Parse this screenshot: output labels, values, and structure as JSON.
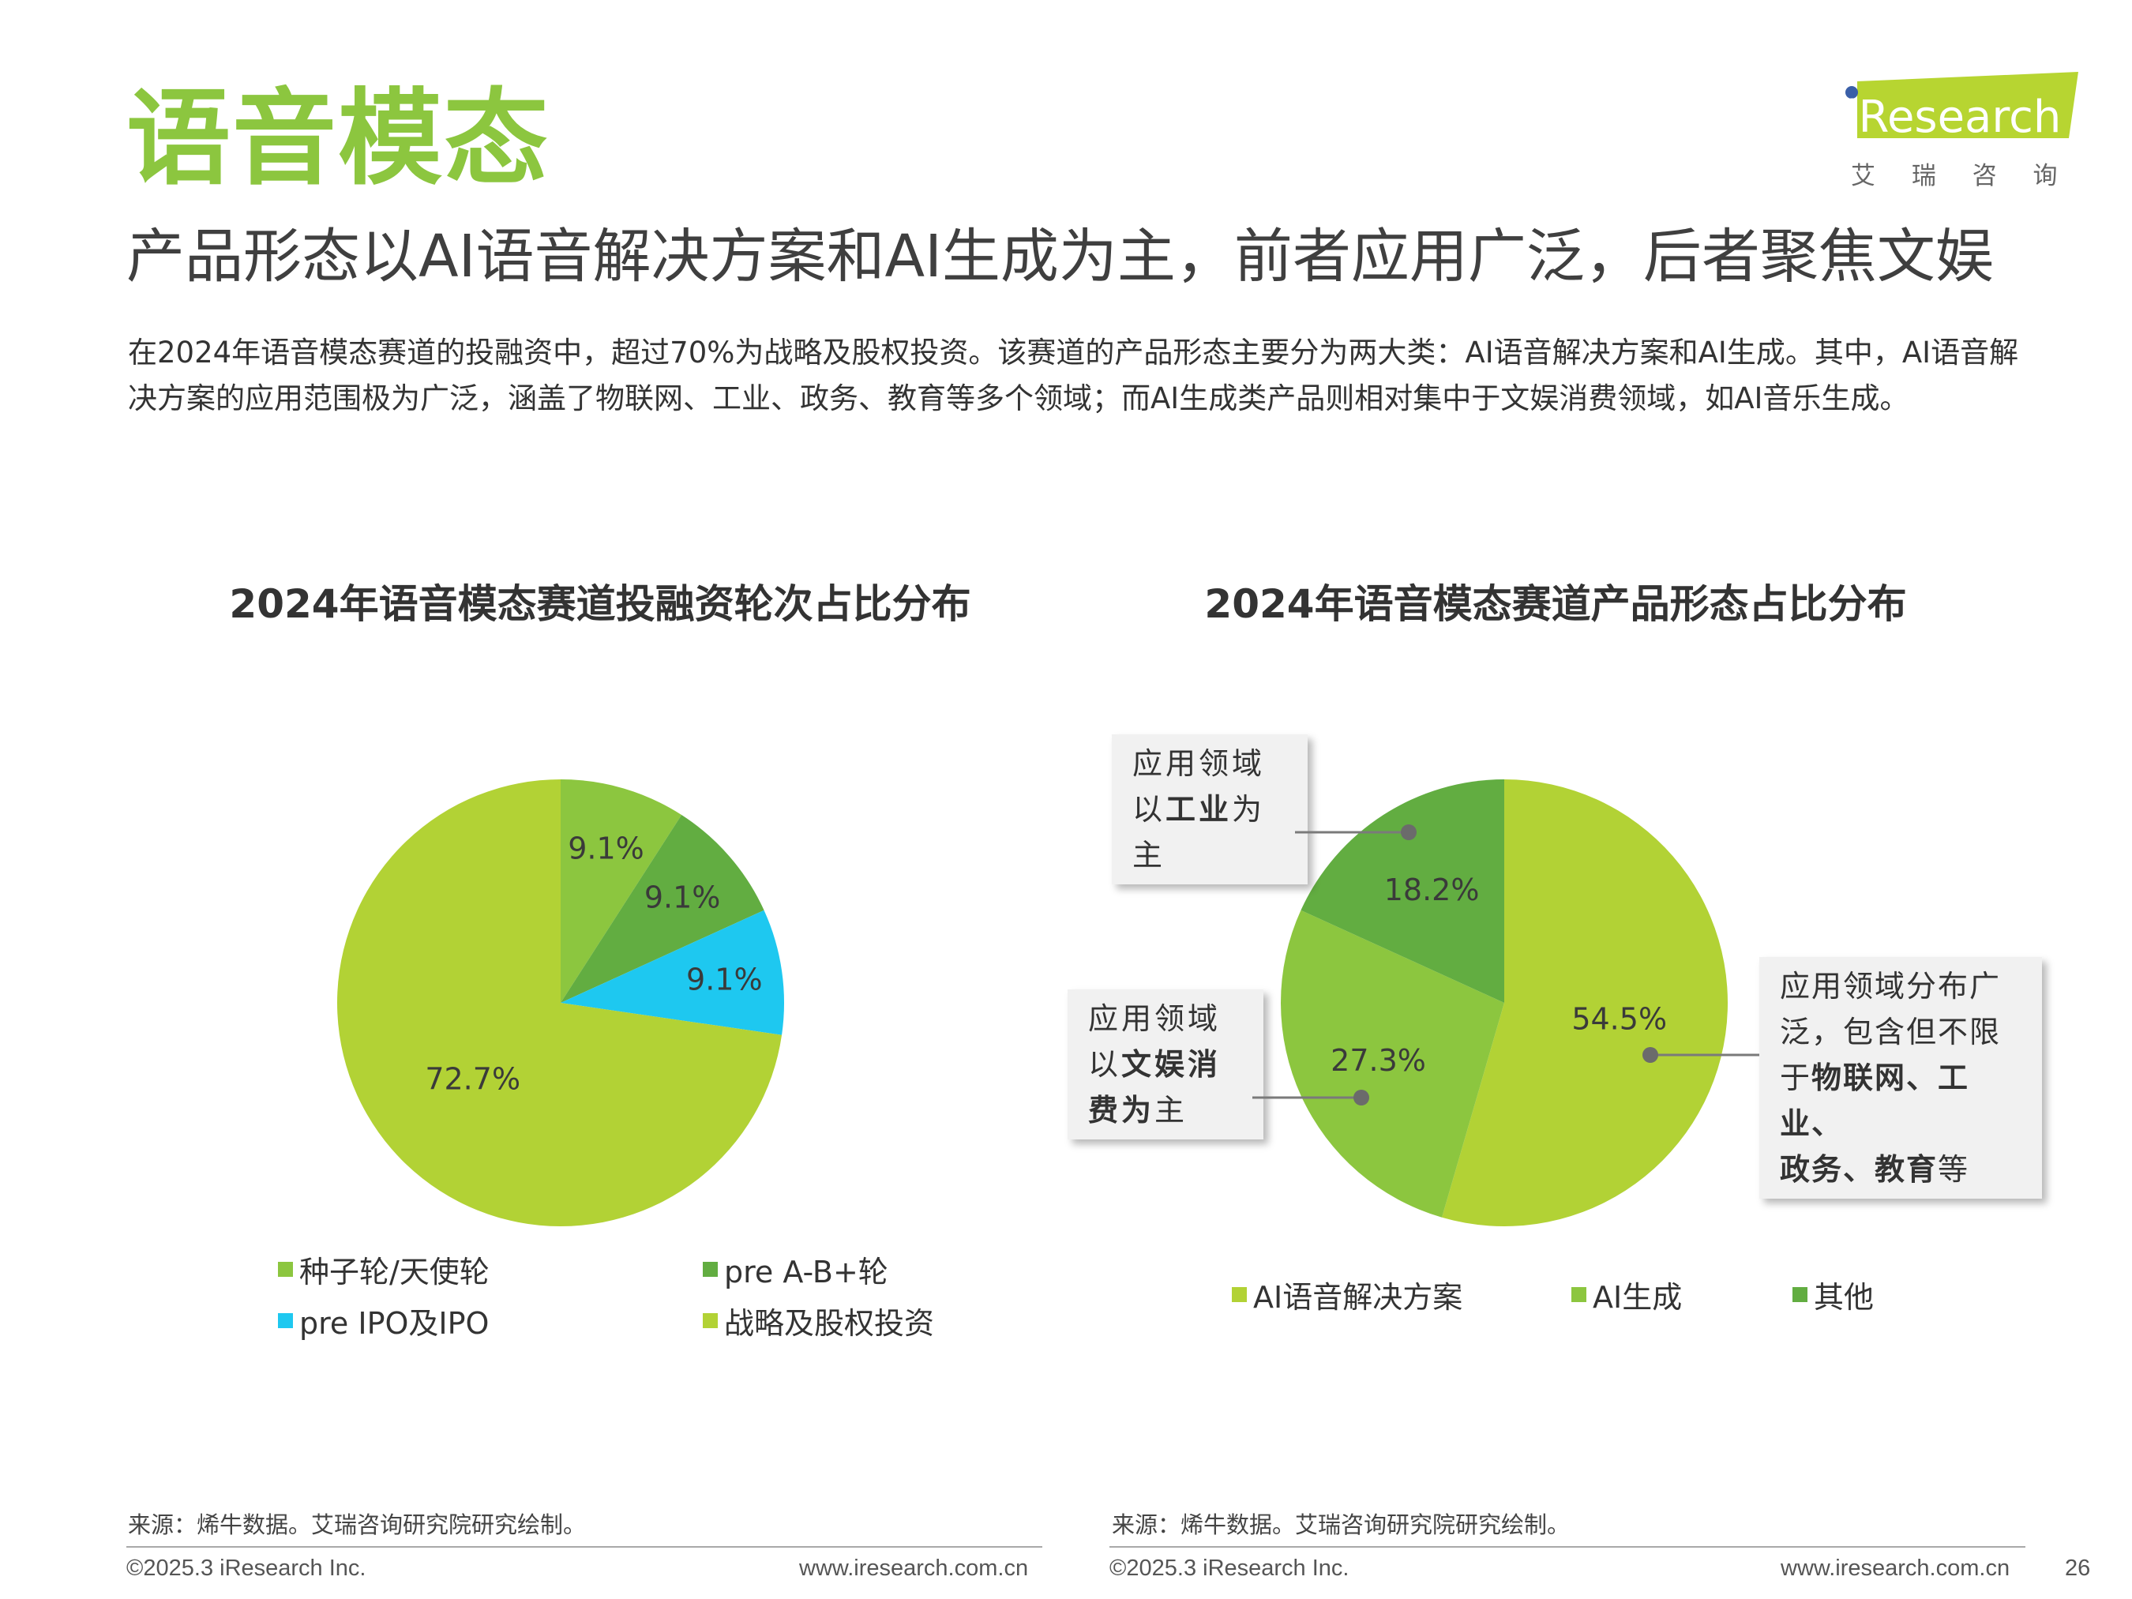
{
  "header": {
    "title": "语音模态",
    "subtitle": "产品形态以AI语音解决方案和AI生成为主，前者应用广泛，后者聚焦文娱",
    "intro": "在2024年语音模态赛道的投融资中，超过70%为战略及股权投资。该赛道的产品形态主要分为两大类：AI语音解决方案和AI生成。其中，AI语音解决方案的应用范围极为广泛，涵盖了物联网、工业、政务、教育等多个领域；而AI生成类产品则相对集中于文娱消费领域，如AI音乐生成。"
  },
  "logo": {
    "brand": "iResearch",
    "cn": "艾 瑞 咨 询",
    "accent": "#8cc63f"
  },
  "chart_data": [
    {
      "type": "pie",
      "title": "2024年语音模态赛道投融资轮次占比分布",
      "categories": [
        "种子轮/天使轮",
        "pre A-B+轮",
        "pre IPO及IPO",
        "战略及股权投资"
      ],
      "values": [
        9.1,
        9.1,
        9.1,
        72.7
      ],
      "labels": [
        "9.1%",
        "9.1%",
        "9.1%",
        "72.7%"
      ],
      "colors": [
        "#8cc63f",
        "#62ad41",
        "#1ec8f0",
        "#b2d235"
      ],
      "legend": "bottom"
    },
    {
      "type": "pie",
      "title": "2024年语音模态赛道产品形态占比分布",
      "categories": [
        "AI语音解决方案",
        "AI生成",
        "其他"
      ],
      "values": [
        54.5,
        27.3,
        18.2
      ],
      "labels": [
        "54.5%",
        "27.3%",
        "18.2%"
      ],
      "colors": [
        "#b2d235",
        "#8cc63f",
        "#62ad41"
      ],
      "legend": "bottom"
    }
  ],
  "callouts": {
    "other": {
      "line1": "应用领域",
      "line2_pre": "以",
      "line2_bold": "工业",
      "line2_post": "为",
      "line3": "主"
    },
    "ai_gen": {
      "line1": "应用领域",
      "line2_pre": "以",
      "line2_bold": "文娱消",
      "line3_bold": "费为",
      "line3_post": "主"
    },
    "ai_voice": {
      "line1": "应用领域分布广",
      "line2": "泛，包含但不限",
      "line3_pre": "于",
      "line3_bold": "物联网、工业、",
      "line4_bold": "政务、教育",
      "line4_post": "等"
    }
  },
  "footer": {
    "source_left": "来源：烯牛数据。艾瑞咨询研究院研究绘制。",
    "source_right": "来源：烯牛数据。艾瑞咨询研究院研究绘制。",
    "copyright_left": "©2025.3 iResearch Inc.",
    "url_left": "www.iresearch.com.cn",
    "copyright_right": "©2025.3 iResearch Inc.",
    "url_right": "www.iresearch.com.cn",
    "page_number": "26"
  }
}
